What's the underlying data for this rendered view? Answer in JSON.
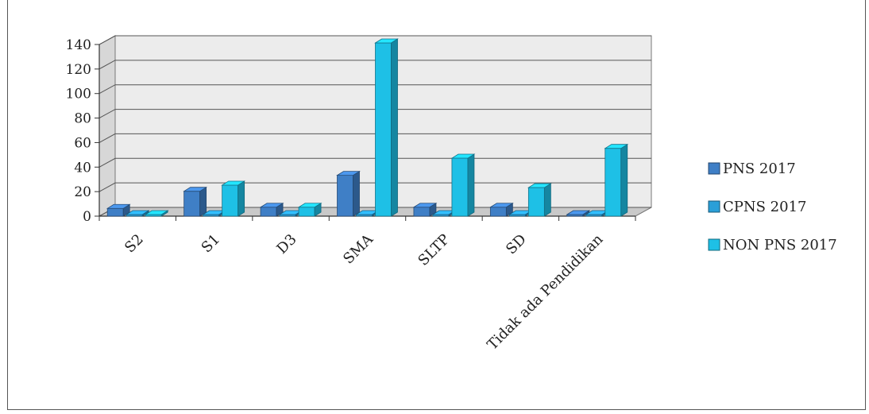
{
  "chart_data": {
    "type": "bar",
    "title": "",
    "xlabel": "",
    "ylabel": "",
    "ylim": [
      0,
      140
    ],
    "yticks": [
      0,
      20,
      40,
      60,
      80,
      100,
      120,
      140
    ],
    "grid": true,
    "legend_position": "right",
    "categories": [
      "S2",
      "S1",
      "D3",
      "SMA",
      "SLTP",
      "SD",
      "Tidak ada Pendidikan"
    ],
    "series": [
      {
        "name": "PNS 2017",
        "color": "#3f7fc6",
        "values": [
          5,
          19,
          6,
          32,
          6,
          6,
          0
        ]
      },
      {
        "name": "CPNS 2017",
        "color": "#2a9fd8",
        "values": [
          0,
          0,
          0,
          0,
          0,
          0,
          0
        ]
      },
      {
        "name": "NON PNS 2017",
        "color": "#1ec0e6",
        "values": [
          0,
          24,
          6,
          140,
          46,
          22,
          54
        ]
      }
    ]
  }
}
